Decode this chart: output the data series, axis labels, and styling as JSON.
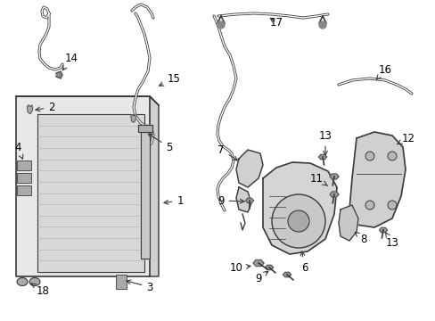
{
  "background_color": "#ffffff",
  "line_color": "#3a3a3a",
  "label_color": "#000000",
  "figsize": [
    4.89,
    3.6
  ],
  "dpi": 100,
  "lw": 1.4
}
